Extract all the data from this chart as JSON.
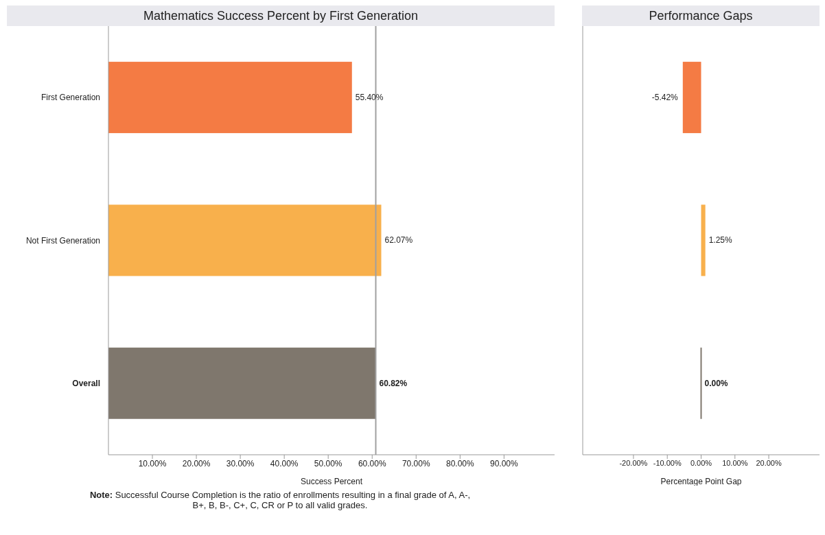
{
  "chart_data": [
    {
      "type": "bar",
      "orientation": "horizontal",
      "title": "Mathematics Success Percent by First Generation",
      "xlabel": "Success Percent",
      "categories": [
        "First Generation",
        "Not First Generation",
        "Overall"
      ],
      "values": [
        55.4,
        62.07,
        60.82
      ],
      "colors": [
        "#f47b44",
        "#f8b04c",
        "#7f776d"
      ],
      "value_labels": [
        "55.40%",
        "62.07%",
        "60.82%"
      ],
      "xlim": [
        0,
        101.5
      ],
      "xticks": [
        {
          "value": 10,
          "label": "10.00%"
        },
        {
          "value": 20,
          "label": "20.00%"
        },
        {
          "value": 30,
          "label": "30.00%"
        },
        {
          "value": 40,
          "label": "40.00%"
        },
        {
          "value": 50,
          "label": "50.00%"
        },
        {
          "value": 60,
          "label": "60.00%"
        },
        {
          "value": 70,
          "label": "70.00%"
        },
        {
          "value": 80,
          "label": "80.00%"
        },
        {
          "value": 90,
          "label": "90.00%"
        }
      ],
      "ref_lines": [
        {
          "axis": "x",
          "value": 60.82,
          "color": "#a0a0a0"
        }
      ],
      "annotations": [
        "Note: Successful Course Completion is the ratio of enrollments resulting in a final grade of A, A-, B+, B, B-, C+, C, CR or P to all valid grades."
      ]
    },
    {
      "type": "bar",
      "orientation": "horizontal",
      "title": "Performance Gaps",
      "xlabel": "Percentage Point Gap",
      "values": [
        -5.42,
        1.25,
        0.0
      ],
      "colors": [
        "#f47b44",
        "#f8b04c",
        "#7f776d"
      ],
      "value_labels": [
        "-5.42%",
        "1.25%",
        "0.00%"
      ],
      "xlim": [
        -35,
        35
      ],
      "tick_labels": "x",
      "xticks": [
        {
          "value": -20,
          "label": "-20.00%"
        },
        {
          "value": -10,
          "label": "-10.00%"
        },
        {
          "value": 0,
          "label": "0.00%"
        },
        {
          "value": 10,
          "label": "10.00%"
        },
        {
          "value": 20,
          "label": "20.00%"
        }
      ]
    }
  ]
}
